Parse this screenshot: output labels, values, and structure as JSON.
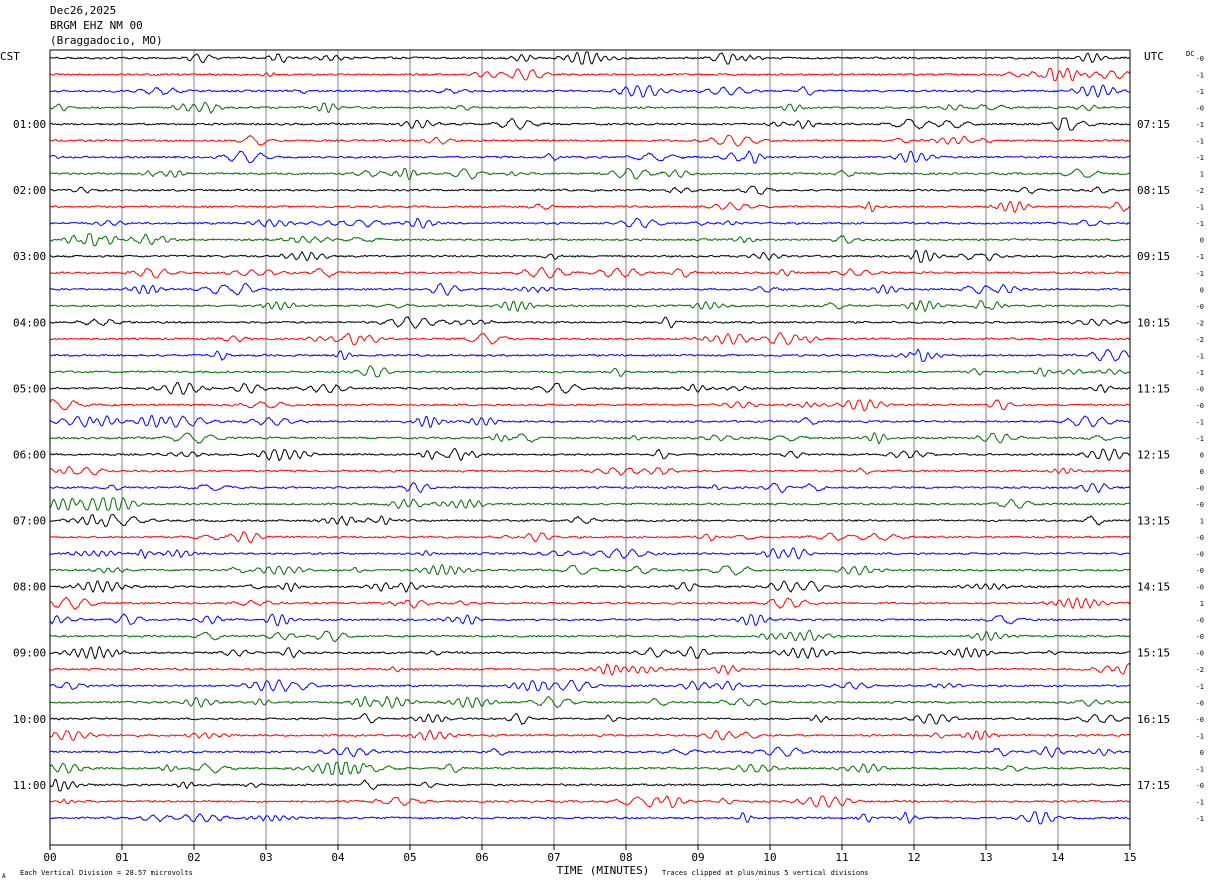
{
  "header": {
    "date": "Dec26,2025",
    "station": "BRGM EHZ NM 00",
    "location": "(Braggadocio, MO)"
  },
  "axes": {
    "left_label": "CST",
    "right_label": "UTC",
    "dc_label": "DC",
    "xlabel": "TIME (MINUTES)"
  },
  "footer": {
    "scale_note": "Each Vertical Division =   28.57 microvolts",
    "clip_note": "Traces clipped at plus/minus 5 vertical divisions",
    "corner_mark": "A"
  },
  "colors": {
    "cycle": [
      "#000000",
      "#ff0000",
      "#0000ff",
      "#007000"
    ],
    "grid": "#808080"
  },
  "chart_data": {
    "type": "line",
    "title": "",
    "xlabel": "TIME (MINUTES)",
    "ylabel": "",
    "xlim": [
      0,
      15
    ],
    "x_ticks": [
      "00",
      "01",
      "02",
      "03",
      "04",
      "05",
      "06",
      "07",
      "08",
      "09",
      "10",
      "11",
      "12",
      "13",
      "14",
      "15"
    ],
    "minutes_per_trace": 15,
    "trace_count": 47,
    "left_time_labels": [
      "01:00",
      "02:00",
      "03:00",
      "04:00",
      "05:00",
      "06:00",
      "07:00",
      "08:00",
      "09:00",
      "10:00",
      "11:00"
    ],
    "right_time_labels": [
      "07:15",
      "08:15",
      "09:15",
      "10:15",
      "11:15",
      "12:15",
      "13:15",
      "14:15",
      "15:15",
      "16:15",
      "17:15"
    ],
    "hour_label_trace_indices": [
      4,
      8,
      12,
      16,
      20,
      24,
      28,
      32,
      36,
      40,
      44
    ],
    "dc_offsets": [
      "-0",
      "-1",
      "-1",
      "-0",
      "-1",
      "-1",
      "-1",
      "1",
      "-2",
      "-1",
      "-1",
      "0",
      "-1",
      "-1",
      "0",
      "-0",
      "-2",
      "-2",
      "-1",
      "-1",
      "-0",
      "-0",
      "-1",
      "-1",
      "0",
      "0",
      "-0",
      "-0",
      "1",
      "-0",
      "-0",
      "-0",
      "-0",
      "1",
      "-0",
      "-0",
      "-0",
      "-2",
      "-1",
      "-0",
      "-0",
      "-1",
      "0",
      "-1",
      "-0",
      "-1",
      "-1"
    ],
    "grid": true
  }
}
